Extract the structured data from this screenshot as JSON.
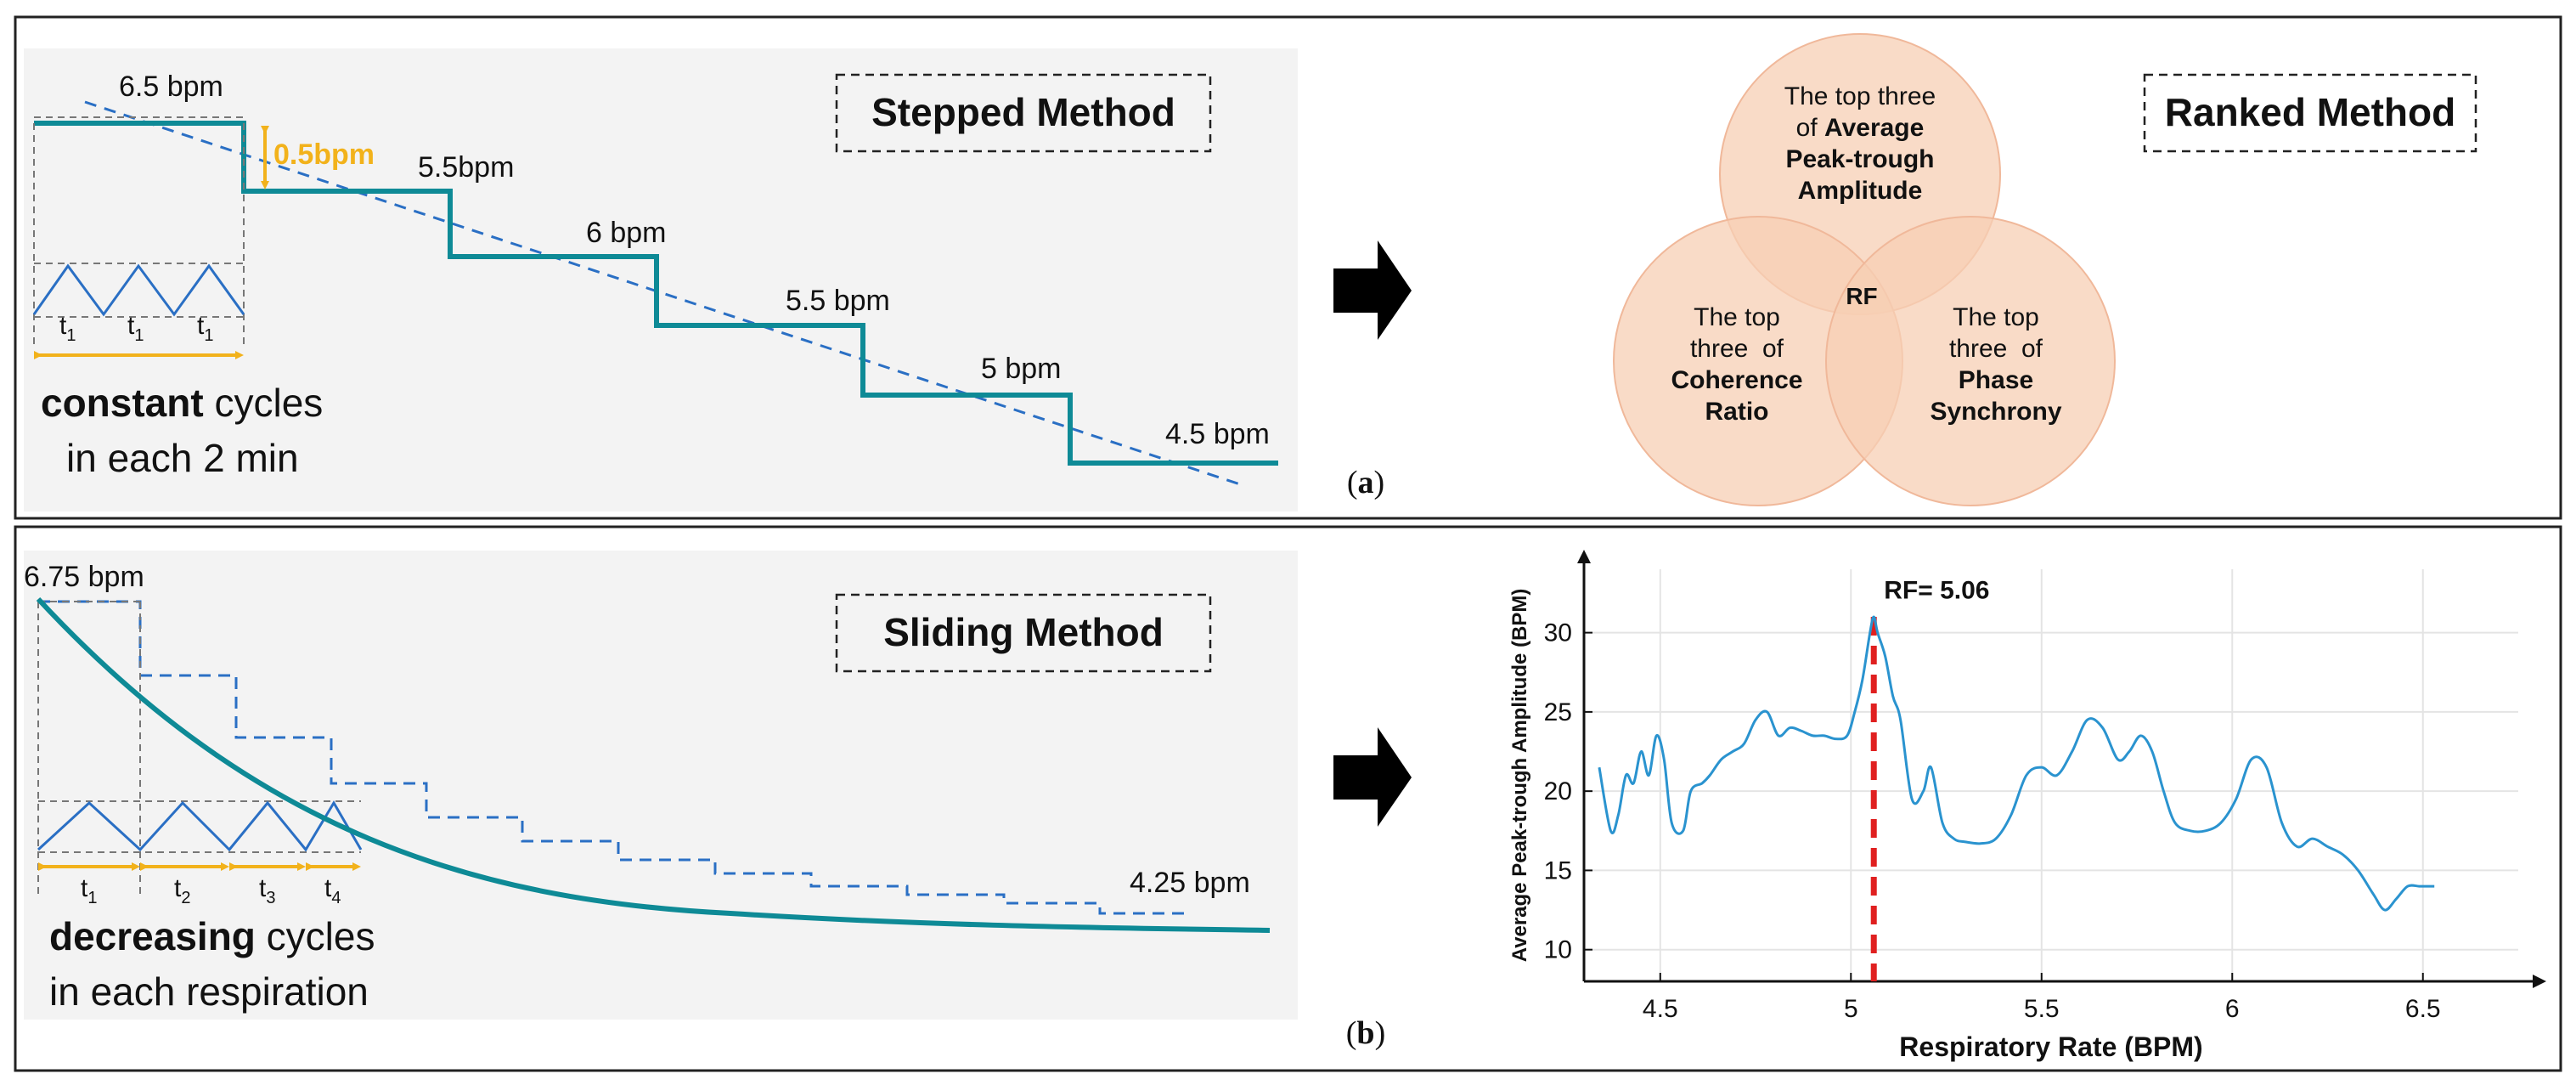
{
  "panel_a": {
    "label_open": "(",
    "label_letter": "a",
    "label_close": ")",
    "stepped": {
      "title": "Stepped Method",
      "rates": [
        "6.5 bpm",
        "5.5bpm",
        "6 bpm",
        "5.5 bpm",
        "5 bpm",
        "4.5 bpm"
      ],
      "step_delta": "0.5bpm",
      "cycle_labels": [
        "t",
        "t",
        "t"
      ],
      "cycle_subs": [
        "1",
        "1",
        "1"
      ],
      "caption_bold": "constant",
      "caption_rest": " cycles",
      "caption_line2": "in each 2 min"
    },
    "ranked": {
      "title": "Ranked Method",
      "top_circle": {
        "line1": "The top three",
        "line2_pre": "of ",
        "line2_bold": "Average",
        "line3": "Peak-trough",
        "line4": "Amplitude"
      },
      "left_circle": {
        "line1": "The top",
        "line2": "three  of",
        "line3": "Coherence",
        "line4": "Ratio"
      },
      "right_circle": {
        "line1": "The top",
        "line2": "three  of",
        "line3": "Phase",
        "line4": "Synchrony"
      },
      "center": "RF"
    }
  },
  "panel_b": {
    "label_open": "(",
    "label_letter": "b",
    "label_close": ")",
    "sliding": {
      "title": "Sliding Method",
      "start_rate": "6.75 bpm",
      "end_rate": "4.25 bpm",
      "cycle_labels": [
        "t",
        "t",
        "t",
        "t"
      ],
      "cycle_subs": [
        "1",
        "2",
        "3",
        "4"
      ],
      "caption_bold": "decreasing",
      "caption_rest": " cycles",
      "caption_line2": "in each respiration"
    }
  },
  "colors": {
    "teal": "#0e8a96",
    "blue_dash": "#2a6fc4",
    "orange": "#f2b21b",
    "venn_fill": "#f7cfb4",
    "red_dash": "#e02020",
    "curve": "#2a93cf"
  },
  "chart_data": {
    "type": "line",
    "xlabel": "Respiratory Rate (BPM)",
    "ylabel": "Average Peak-trough Amplitude (BPM)",
    "xlim": [
      4.3,
      6.75
    ],
    "ylim": [
      8,
      34
    ],
    "x_ticks": [
      4.5,
      5,
      5.5,
      6,
      6.5
    ],
    "x_tick_labels": [
      "4.5",
      "5",
      "5.5",
      "6",
      "6.5"
    ],
    "y_ticks": [
      10,
      15,
      20,
      25,
      30
    ],
    "y_tick_labels": [
      "10",
      "15",
      "20",
      "25",
      "30"
    ],
    "grid": true,
    "annotation": {
      "text": "RF= 5.06",
      "x": 5.06
    },
    "series": [
      {
        "name": "amplitude",
        "x": [
          4.34,
          4.37,
          4.39,
          4.41,
          4.43,
          4.45,
          4.47,
          4.49,
          4.51,
          4.53,
          4.56,
          4.58,
          4.61,
          4.63,
          4.66,
          4.69,
          4.72,
          4.75,
          4.78,
          4.81,
          4.84,
          4.87,
          4.9,
          4.93,
          4.96,
          4.99,
          5.01,
          5.03,
          5.05,
          5.06,
          5.07,
          5.09,
          5.11,
          5.13,
          5.16,
          5.19,
          5.21,
          5.24,
          5.27,
          5.3,
          5.34,
          5.38,
          5.42,
          5.46,
          5.5,
          5.54,
          5.58,
          5.62,
          5.66,
          5.7,
          5.73,
          5.76,
          5.79,
          5.82,
          5.85,
          5.89,
          5.93,
          5.97,
          6.01,
          6.05,
          6.09,
          6.13,
          6.17,
          6.21,
          6.25,
          6.29,
          6.33,
          6.37,
          6.4,
          6.43,
          6.46,
          6.49,
          6.51,
          6.53
        ],
        "values": [
          21.5,
          17.5,
          18.5,
          21,
          20.5,
          22.5,
          21,
          23.5,
          22,
          18,
          17.5,
          20,
          20.5,
          21,
          22,
          22.5,
          23,
          24.5,
          25,
          23.5,
          24,
          23.8,
          23.5,
          23.5,
          23.3,
          23.5,
          25,
          27,
          30,
          31,
          30,
          28.5,
          26,
          24.5,
          19.5,
          20,
          21.5,
          18,
          17,
          16.8,
          16.7,
          17,
          18.5,
          21,
          21.5,
          21,
          22.5,
          24.5,
          24,
          22,
          22.5,
          23.5,
          22.5,
          20,
          18,
          17.5,
          17.5,
          18,
          19.5,
          22,
          21.5,
          18,
          16.5,
          17,
          16.5,
          16,
          15,
          13.5,
          12.5,
          13.2,
          14,
          14,
          14,
          14
        ]
      }
    ]
  }
}
